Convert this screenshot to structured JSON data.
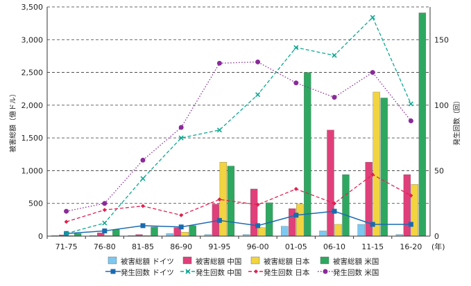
{
  "chart_data": {
    "type": "bar",
    "categories": [
      "71-75",
      "76-80",
      "81-85",
      "86-90",
      "91-95",
      "96-00",
      "01-05",
      "06-10",
      "11-15",
      "16-20"
    ],
    "x_unit": "(年)",
    "ylabel_left": "被害総額（億ドル）",
    "ylabel_right": "発生回数（回）",
    "ylim_left": [
      0,
      3500
    ],
    "ylim_right": [
      0,
      175
    ],
    "yticks_left": [
      "0",
      "500",
      "1,000",
      "1,500",
      "2,000",
      "2,500",
      "3,000",
      "3,500"
    ],
    "yticks_right": [
      "0",
      "50",
      "100",
      "150"
    ],
    "grid": true,
    "legend_position": "bottom",
    "bar_series": [
      {
        "name": "被害総額 ドイツ",
        "color": "#7cc8f0",
        "values": [
          10,
          10,
          10,
          40,
          25,
          25,
          150,
          80,
          180,
          25
        ]
      },
      {
        "name": "被害総額 中国",
        "color": "#e0407a",
        "values": [
          20,
          50,
          25,
          130,
          490,
          720,
          420,
          1620,
          1130,
          940
        ]
      },
      {
        "name": "被害総額 日本",
        "color": "#f2d440",
        "values": [
          10,
          10,
          10,
          60,
          1130,
          130,
          490,
          180,
          2200,
          790
        ]
      },
      {
        "name": "被害総額 米国",
        "color": "#2ea860",
        "values": [
          40,
          100,
          140,
          160,
          1070,
          510,
          2500,
          940,
          2110,
          3410
        ]
      }
    ],
    "line_series": [
      {
        "name": "発生回数 ドイツ",
        "color": "#1a6ab0",
        "style": "solid",
        "marker": "square",
        "values": [
          2,
          4,
          8,
          7,
          12,
          8,
          16,
          19,
          9,
          9
        ]
      },
      {
        "name": "発生回数 中国",
        "color": "#0aa890",
        "style": "dash",
        "marker": "x",
        "values": [
          2,
          10,
          44,
          75,
          81,
          108,
          144,
          138,
          167,
          101
        ]
      },
      {
        "name": "発生回数 日本",
        "color": "#e02050",
        "style": "dash",
        "marker": "diamond",
        "values": [
          11,
          20,
          23,
          16,
          28,
          24,
          36,
          25,
          47,
          31
        ]
      },
      {
        "name": "発生回数 米国",
        "color": "#8a2a9a",
        "style": "dot",
        "marker": "circle",
        "values": [
          19,
          25,
          58,
          83,
          132,
          133,
          117,
          106,
          125,
          88
        ]
      }
    ],
    "legend_order": [
      "被害総額 ドイツ",
      "被害総額 中国",
      "被害総額 日本",
      "被害総額 米国",
      "発生回数 ドイツ",
      "発生回数 中国",
      "発生回数 日本",
      "発生回数 米国"
    ]
  }
}
